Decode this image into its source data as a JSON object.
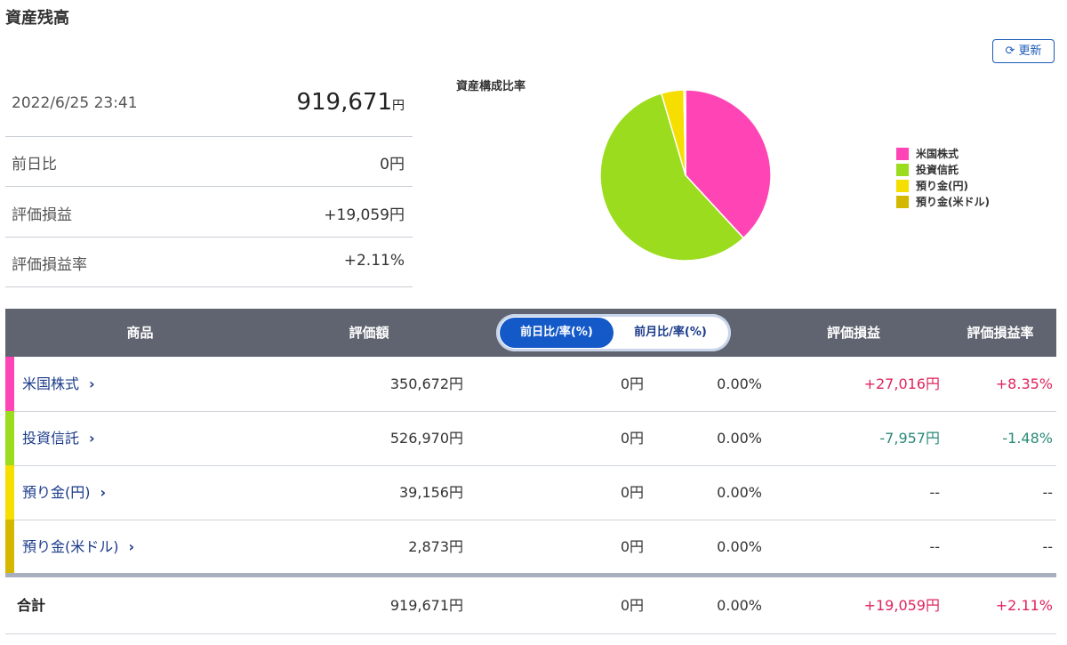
{
  "header": {
    "title": "資産残高",
    "refresh": "更新"
  },
  "summary": {
    "datetime": "2022/6/25 23:41",
    "total": "919,671",
    "total_unit": "円",
    "rows": [
      {
        "label": "前日比",
        "value": "0円"
      },
      {
        "label": "評価損益",
        "value": "+19,059円"
      },
      {
        "label": "評価損益率",
        "value": "+2.11%"
      }
    ]
  },
  "chart_data": {
    "type": "pie",
    "title": "資産構成比率",
    "categories": [
      "米国株式",
      "投資信託",
      "預り金(円)",
      "預り金(米ドル)"
    ],
    "values": [
      350672,
      526970,
      39156,
      2873
    ],
    "colors": [
      "#ff45b5",
      "#9bdc1e",
      "#f5de00",
      "#d4b800"
    ]
  },
  "table": {
    "columns": [
      "商品",
      "評価額",
      "評価損益",
      "評価損益率"
    ],
    "toggle": [
      "前日比/率(%)",
      "前月比/率(%)"
    ],
    "rows": [
      {
        "name": "米国株式",
        "cells": [
          "350,672円",
          "0円",
          "0.00%",
          "+27,016円",
          "+8.35%"
        ]
      },
      {
        "name": "投資信託",
        "cells": [
          "526,970円",
          "0円",
          "0.00%",
          "-7,957円",
          "-1.48%"
        ]
      },
      {
        "name": "預り金(円)",
        "cells": [
          "39,156円",
          "0円",
          "0.00%",
          "--",
          "--"
        ]
      },
      {
        "name": "預り金(米ドル)",
        "cells": [
          "2,873円",
          "0円",
          "0.00%",
          "--",
          "--"
        ]
      }
    ],
    "total": {
      "name": "合計",
      "cells": [
        "919,671円",
        "0円",
        "0.00%",
        "+19,059円",
        "+2.11%"
      ]
    }
  }
}
